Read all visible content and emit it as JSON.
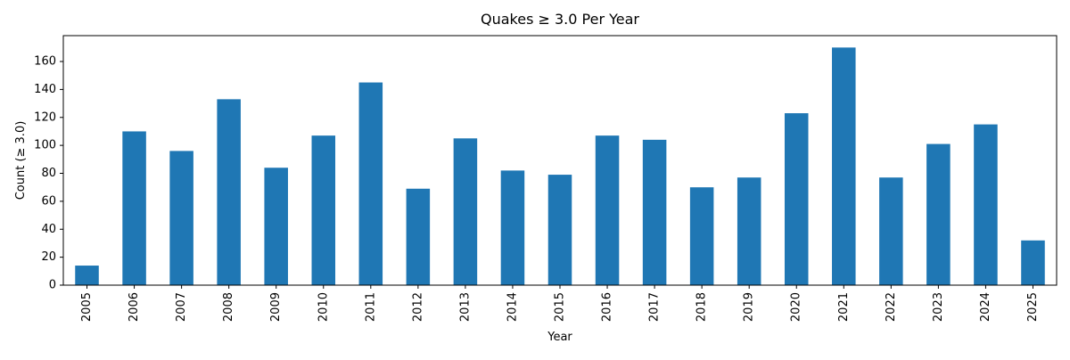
{
  "chart_data": {
    "type": "bar",
    "title": "Quakes ≥ 3.0 Per Year",
    "xlabel": "Year",
    "ylabel": "Count (≥ 3.0)",
    "categories": [
      "2005",
      "2006",
      "2007",
      "2008",
      "2009",
      "2010",
      "2011",
      "2012",
      "2013",
      "2014",
      "2015",
      "2016",
      "2017",
      "2018",
      "2019",
      "2020",
      "2021",
      "2022",
      "2023",
      "2024",
      "2025"
    ],
    "values": [
      14,
      110,
      96,
      133,
      84,
      107,
      145,
      69,
      105,
      82,
      79,
      107,
      104,
      70,
      77,
      123,
      170,
      77,
      101,
      115,
      32
    ],
    "ylim": [
      0,
      178.5
    ],
    "yticks": [
      0,
      20,
      40,
      60,
      80,
      100,
      120,
      140,
      160
    ],
    "grid": false,
    "legend": "none",
    "bar_color": "#1f77b4"
  }
}
